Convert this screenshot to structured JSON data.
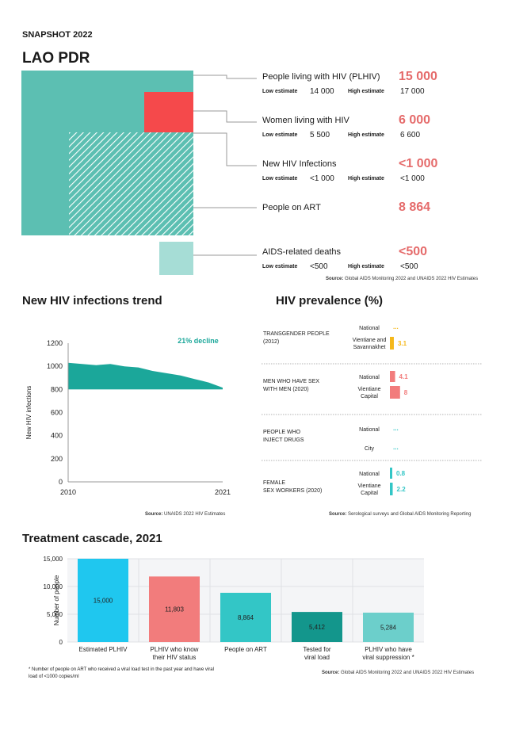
{
  "header": {
    "snapshot": "SNAPSHOT 2022",
    "country": "LAO PDR"
  },
  "colors": {
    "teal": "#5cbfb2",
    "red": "#f5494b",
    "light_teal": "#a6ddd6",
    "value_red": "#e56b6b",
    "cyan": "#1fc7ef",
    "pink": "#f27c7c",
    "teal2": "#33c6c6",
    "dark_teal": "#13968c",
    "pale_teal": "#6ccfcb",
    "yellow": "#f5b81a",
    "trend_green": "#1ba79a"
  },
  "overview": {
    "low_label": "Low estimate",
    "high_label": "High estimate",
    "items": [
      {
        "label": "People living with HIV (PLHIV)",
        "value": "15 000",
        "low": "14 000",
        "high": "17 000"
      },
      {
        "label": "Women living with HIV",
        "value": "6 000",
        "low": "5 500",
        "high": "6 600"
      },
      {
        "label": "New HIV Infections",
        "value": "<1 000",
        "low": "<1 000",
        "high": "<1 000"
      },
      {
        "label": "People on ART",
        "value": "8 864"
      },
      {
        "label": "AIDS-related deaths",
        "value": "<500",
        "low": "<500",
        "high": "<500"
      }
    ],
    "source_key": "Source:",
    "source_text": "Global AIDS Monitoring 2022 and UNAIDS 2022 HIV Estimates"
  },
  "trend": {
    "title": "New HIV infections trend",
    "annotation": "21% decline",
    "source_key": "Source:",
    "source_text": "UNAIDS 2022 HIV Estimates"
  },
  "prevalence": {
    "title": "HIV prevalence (%)",
    "groups": [
      {
        "name": "TRANSGENDER PEOPLE (2012)",
        "rows": [
          {
            "label": "National",
            "value": "...",
            "num": null,
            "color": "#f5b81a"
          },
          {
            "label": "Vientiane and Savannakhet",
            "value": "3.1",
            "num": 3.1,
            "color": "#f5b81a"
          }
        ]
      },
      {
        "name": "MEN WHO HAVE SEX WITH MEN (2020)",
        "rows": [
          {
            "label": "National",
            "value": "4.1",
            "num": 4.1,
            "color": "#f27c7c"
          },
          {
            "label": "Vientiane Capital",
            "value": "8",
            "num": 8,
            "color": "#f27c7c"
          }
        ]
      },
      {
        "name": "PEOPLE WHO INJECT DRUGS",
        "rows": [
          {
            "label": "National",
            "value": "...",
            "num": null,
            "color": "#33c6c6"
          },
          {
            "label": "City",
            "value": "...",
            "num": null,
            "color": "#33c6c6"
          }
        ]
      },
      {
        "name": "FEMALE SEX WORKERS (2020)",
        "rows": [
          {
            "label": "National",
            "value": "0.8",
            "num": 0.8,
            "color": "#33c6c6"
          },
          {
            "label": "Vientiane Capital",
            "value": "2.2",
            "num": 2.2,
            "color": "#33c6c6"
          }
        ]
      }
    ],
    "source_key": "Source:",
    "source_text": "Serological surveys and Global AIDS Monitoring Reporting"
  },
  "cascade": {
    "title": "Treatment cascade, 2021",
    "footnote": "* Number of people on ART who received a viral load test in the past year and have viral load of <1000 copies/ml",
    "source_key": "Source:",
    "source_text": "Global AIDS Monitoring 2022 and UNAIDS 2022 HIV Estimates"
  },
  "chart_data": [
    {
      "type": "area",
      "title": "New HIV infections trend",
      "x": [
        2010,
        2011,
        2012,
        2013,
        2014,
        2015,
        2016,
        2017,
        2018,
        2019,
        2020,
        2021
      ],
      "y": [
        1030,
        1020,
        1010,
        1020,
        1000,
        990,
        960,
        940,
        920,
        890,
        860,
        815
      ],
      "ylabel": "New HIV infections",
      "xticks": [
        "2010",
        "2021"
      ],
      "yticks": [
        "0",
        "200",
        "400",
        "600",
        "800",
        "1000",
        "1200"
      ],
      "ylim": [
        0,
        1200
      ],
      "grid": false,
      "annotation": "21% decline"
    },
    {
      "type": "bar",
      "title": "HIV prevalence (%)",
      "categories": [
        "Transgender people — Vientiane and Savannakhet",
        "MSM — National",
        "MSM — Vientiane Capital",
        "FSW — National",
        "FSW — Vientiane Capital"
      ],
      "values": [
        3.1,
        4.1,
        8,
        0.8,
        2.2
      ]
    },
    {
      "type": "bar",
      "title": "Treatment cascade, 2021",
      "ylabel": "Number of people",
      "ylim": [
        0,
        15000
      ],
      "yticks": [
        "0",
        "5,000",
        "10,000",
        "15,000"
      ],
      "categories": [
        "Estimated PLHIV",
        "PLHIV who know their HIV status",
        "People on ART",
        "Tested for viral load",
        "PLHIV who have viral suppression *"
      ],
      "values": [
        15000,
        11803,
        8864,
        5412,
        5284
      ],
      "value_labels": [
        "15,000",
        "11,803",
        "8,864",
        "5,412",
        "5,284"
      ],
      "colors": [
        "#1fc7ef",
        "#f27c7c",
        "#33c6c6",
        "#13968c",
        "#6ccfcb"
      ],
      "grid": true
    }
  ]
}
